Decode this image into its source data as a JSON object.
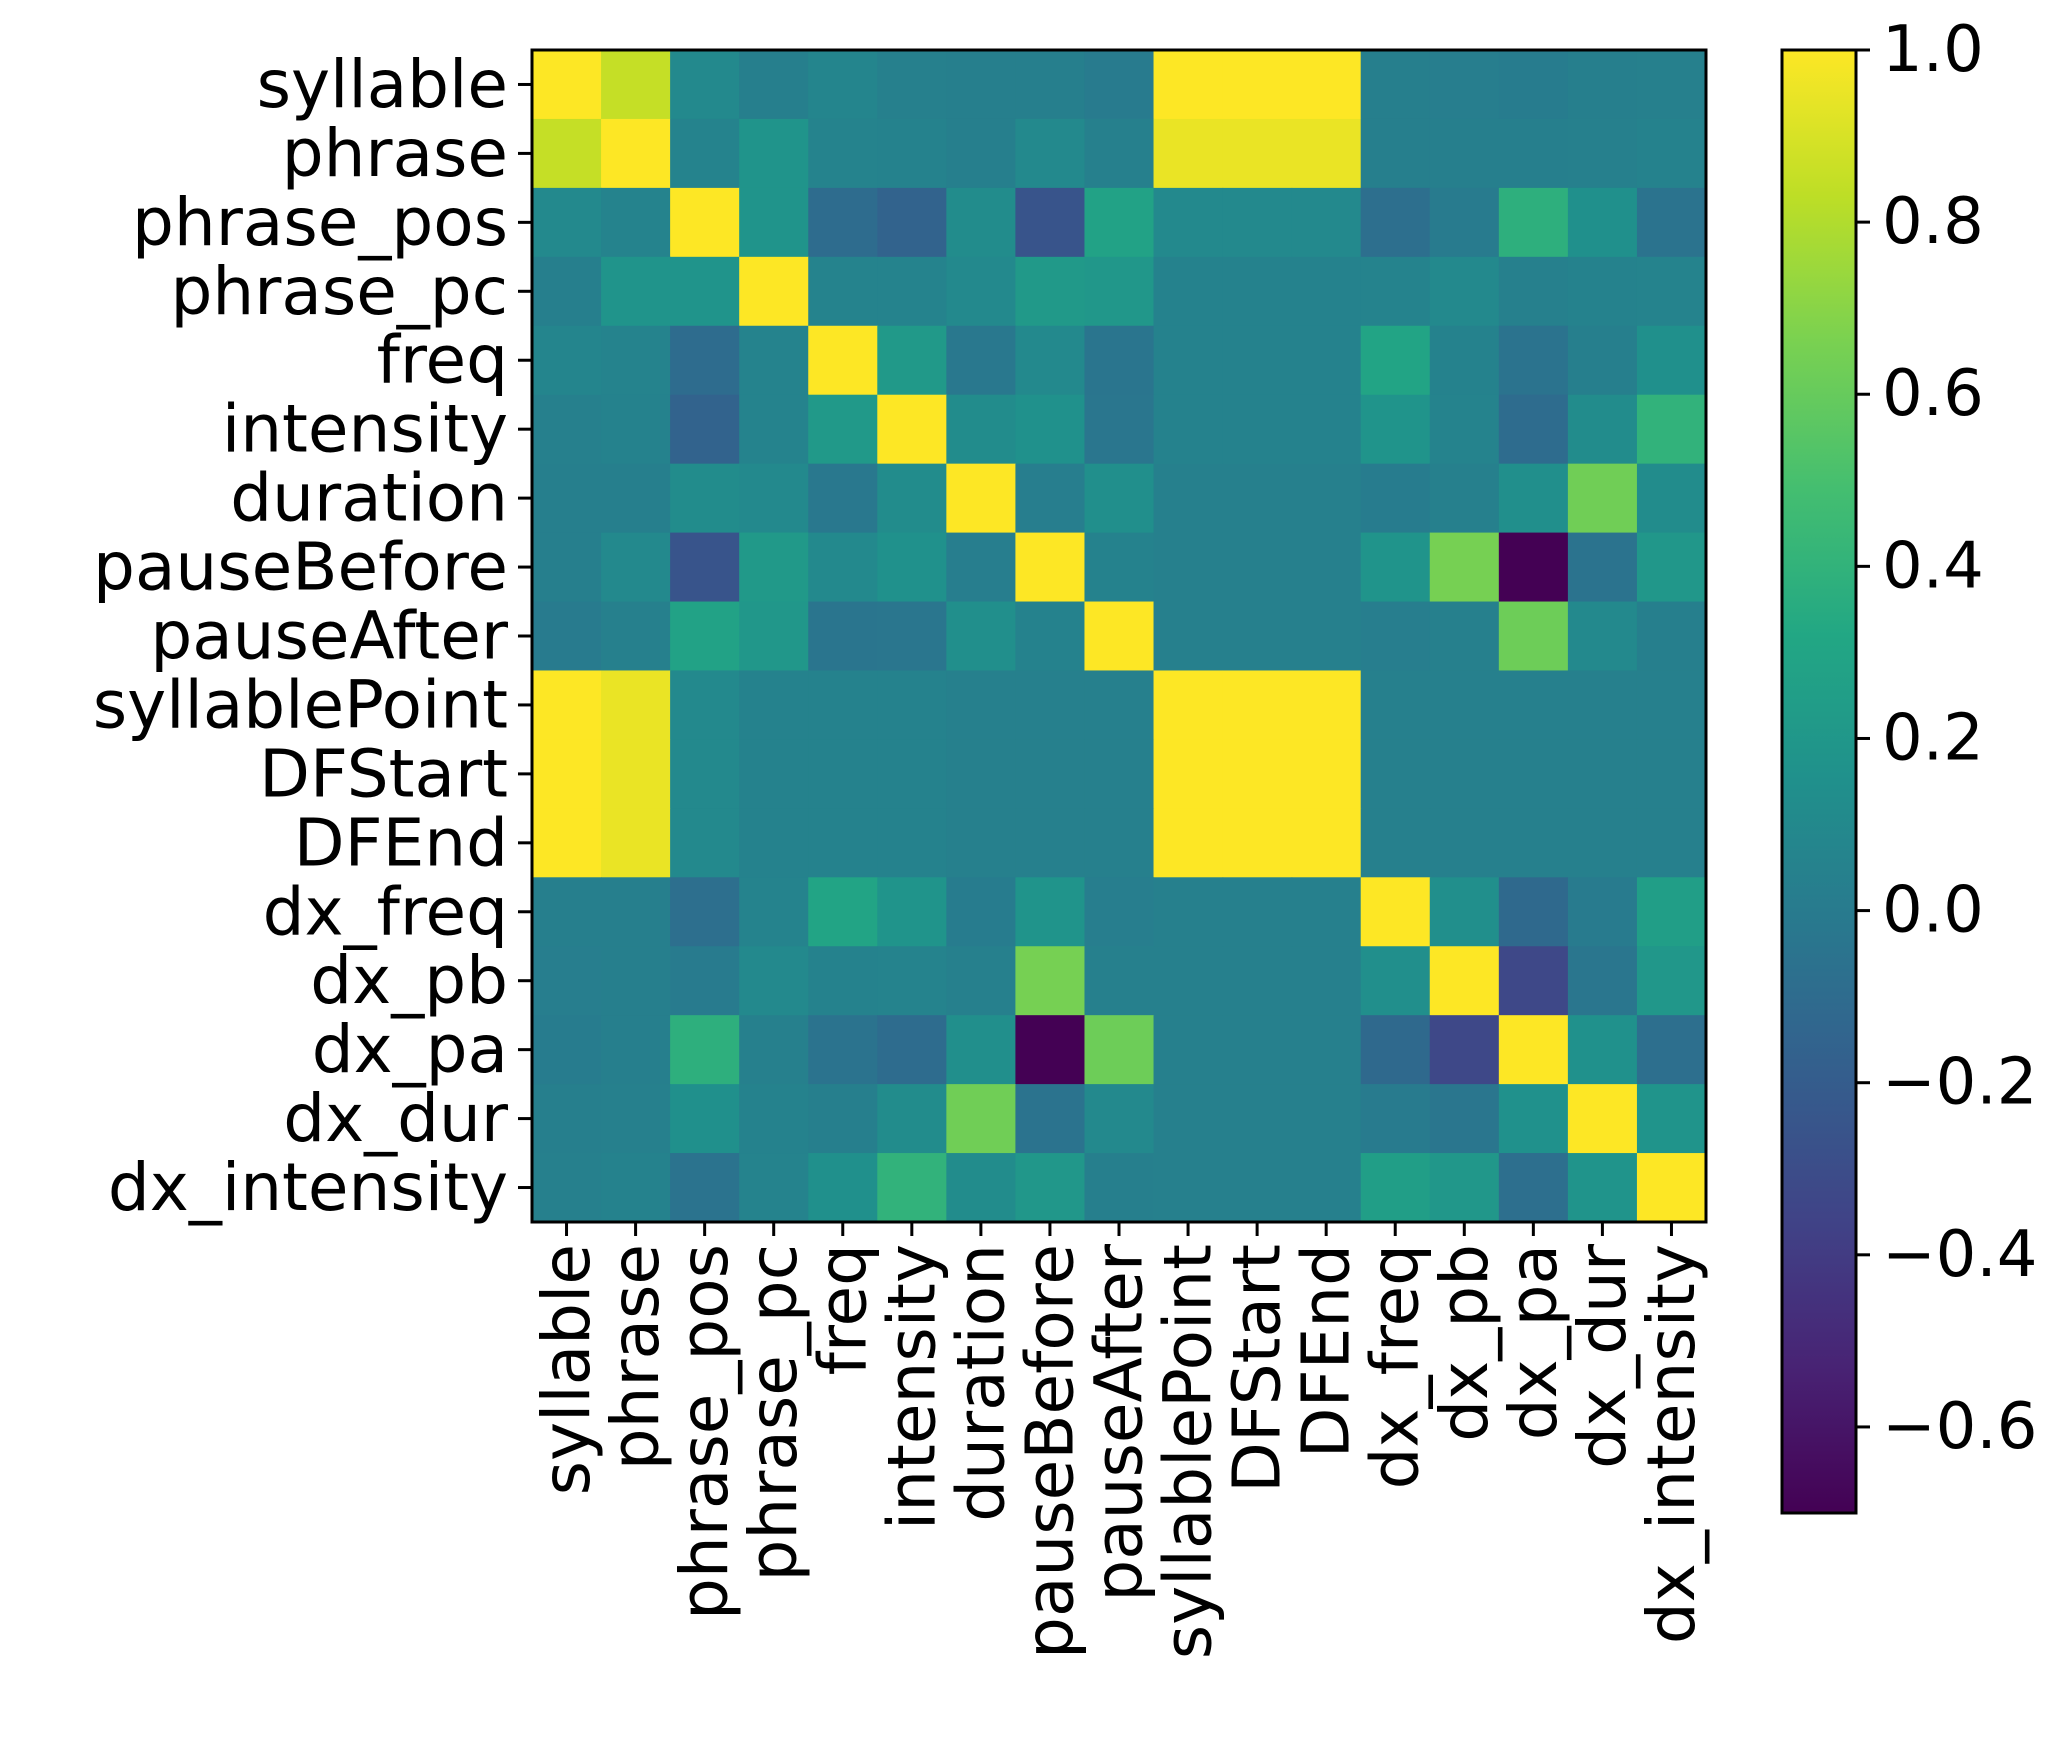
{
  "chart_data": {
    "type": "heatmap",
    "title": "",
    "colormap": "viridis",
    "vmin": -0.7,
    "vmax": 1.0,
    "labels": [
      "syllable",
      "phrase",
      "phrase_pos",
      "phrase_pc",
      "freq",
      "intensity",
      "duration",
      "pauseBefore",
      "pauseAfter",
      "syllablePoint",
      "DFStart",
      "DFEnd",
      "dx_freq",
      "dx_pb",
      "dx_pa",
      "dx_dur",
      "dx_intensity"
    ],
    "colorbar": {
      "ticks": [
        1.0,
        0.8,
        0.6,
        0.4,
        0.2,
        0.0,
        -0.2,
        -0.4,
        -0.6
      ],
      "tick_labels": [
        "1.0",
        "0.8",
        "0.6",
        "0.4",
        "0.2",
        "0.0",
        "−0.2",
        "−0.4",
        "−0.6"
      ]
    },
    "values": [
      [
        1.0,
        0.85,
        0.1,
        0.03,
        0.07,
        0.04,
        0.03,
        0.03,
        0.0,
        1.0,
        1.0,
        1.0,
        0.03,
        0.02,
        0.01,
        0.03,
        0.04
      ],
      [
        0.85,
        1.0,
        0.06,
        0.18,
        0.06,
        0.05,
        0.03,
        0.1,
        0.04,
        0.95,
        0.95,
        0.95,
        0.03,
        0.03,
        0.03,
        0.04,
        0.05
      ],
      [
        0.1,
        0.06,
        1.0,
        0.18,
        -0.1,
        -0.16,
        0.12,
        -0.25,
        0.28,
        0.1,
        0.1,
        0.1,
        -0.08,
        0.0,
        0.38,
        0.15,
        -0.05
      ],
      [
        0.03,
        0.18,
        0.18,
        1.0,
        0.06,
        0.06,
        0.1,
        0.22,
        0.2,
        0.05,
        0.05,
        0.05,
        0.06,
        0.1,
        0.04,
        0.05,
        0.06
      ],
      [
        0.07,
        0.06,
        -0.1,
        0.06,
        1.0,
        0.22,
        -0.02,
        0.1,
        -0.04,
        0.05,
        0.05,
        0.05,
        0.3,
        0.05,
        -0.05,
        0.03,
        0.15
      ],
      [
        0.04,
        0.05,
        -0.16,
        0.06,
        0.22,
        1.0,
        0.12,
        0.16,
        -0.03,
        0.05,
        0.05,
        0.05,
        0.18,
        0.06,
        -0.1,
        0.12,
        0.4
      ],
      [
        0.03,
        0.03,
        0.12,
        0.1,
        -0.02,
        0.12,
        1.0,
        0.02,
        0.14,
        0.04,
        0.04,
        0.04,
        0.01,
        0.04,
        0.14,
        0.63,
        0.12
      ],
      [
        0.03,
        0.1,
        -0.25,
        0.22,
        0.1,
        0.16,
        0.02,
        1.0,
        0.05,
        0.04,
        0.04,
        0.04,
        0.18,
        0.65,
        -0.7,
        -0.05,
        0.2
      ],
      [
        0.0,
        0.04,
        0.28,
        0.2,
        -0.04,
        -0.03,
        0.14,
        0.05,
        1.0,
        0.04,
        0.04,
        0.04,
        0.02,
        0.04,
        0.62,
        0.1,
        0.03
      ],
      [
        1.0,
        0.95,
        0.1,
        0.05,
        0.05,
        0.05,
        0.04,
        0.04,
        0.04,
        1.0,
        1.0,
        1.0,
        0.04,
        0.04,
        0.04,
        0.04,
        0.04
      ],
      [
        1.0,
        0.95,
        0.1,
        0.05,
        0.05,
        0.05,
        0.04,
        0.04,
        0.04,
        1.0,
        1.0,
        1.0,
        0.04,
        0.04,
        0.04,
        0.04,
        0.04
      ],
      [
        1.0,
        0.95,
        0.1,
        0.05,
        0.05,
        0.05,
        0.04,
        0.04,
        0.04,
        1.0,
        1.0,
        1.0,
        0.04,
        0.04,
        0.04,
        0.04,
        0.04
      ],
      [
        0.03,
        0.03,
        -0.08,
        0.06,
        0.3,
        0.18,
        0.01,
        0.18,
        0.02,
        0.04,
        0.04,
        0.04,
        1.0,
        0.14,
        -0.12,
        0.0,
        0.25
      ],
      [
        0.02,
        0.03,
        0.0,
        0.1,
        0.05,
        0.06,
        0.04,
        0.65,
        0.04,
        0.04,
        0.04,
        0.04,
        0.14,
        1.0,
        -0.33,
        -0.03,
        0.2
      ],
      [
        0.01,
        0.03,
        0.38,
        0.04,
        -0.05,
        -0.1,
        0.14,
        -0.7,
        0.62,
        0.04,
        0.04,
        0.04,
        -0.12,
        -0.33,
        1.0,
        0.16,
        -0.08
      ],
      [
        0.03,
        0.04,
        0.15,
        0.05,
        0.03,
        0.12,
        0.63,
        -0.05,
        0.1,
        0.04,
        0.04,
        0.04,
        0.0,
        -0.03,
        0.16,
        1.0,
        0.18
      ],
      [
        0.04,
        0.05,
        -0.05,
        0.06,
        0.15,
        0.4,
        0.12,
        0.2,
        0.03,
        0.04,
        0.04,
        0.04,
        0.25,
        0.2,
        -0.08,
        0.18,
        1.0
      ]
    ]
  }
}
